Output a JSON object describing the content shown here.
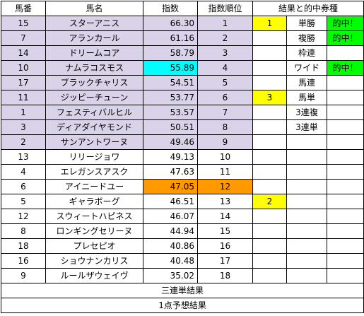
{
  "headers": {
    "umaban": "馬番",
    "bamei": "馬名",
    "shisu": "指数",
    "rank": "指数順位",
    "result": "結果と的中券種"
  },
  "colors": {
    "highlight_top9": "#d9d2e9",
    "cyan": "#00ffff",
    "orange": "#ff9900",
    "yellow": "#ffff00",
    "green": "#00ff00"
  },
  "rows": [
    {
      "num": "15",
      "name": "スターアニス",
      "score": "66.30",
      "rank": "1",
      "result": "1",
      "ticket": "単勝",
      "hit": "的中！"
    },
    {
      "num": "7",
      "name": "アランカール",
      "score": "61.16",
      "rank": "2",
      "result": "",
      "ticket": "複勝",
      "hit": "的中！"
    },
    {
      "num": "14",
      "name": "ドリームコア",
      "score": "58.79",
      "rank": "3",
      "result": "",
      "ticket": "枠連",
      "hit": ""
    },
    {
      "num": "10",
      "name": "ナムラコスモス",
      "score": "55.89",
      "rank": "4",
      "result": "",
      "ticket": "ワイド",
      "hit": "的中！"
    },
    {
      "num": "17",
      "name": "ブラックチャリス",
      "score": "54.51",
      "rank": "5",
      "result": "",
      "ticket": "馬連",
      "hit": ""
    },
    {
      "num": "11",
      "name": "ジッピーチューン",
      "score": "53.77",
      "rank": "6",
      "result": "3",
      "ticket": "馬単",
      "hit": ""
    },
    {
      "num": "1",
      "name": "フェスティバルヒル",
      "score": "53.57",
      "rank": "7",
      "result": "",
      "ticket": "3連複",
      "hit": ""
    },
    {
      "num": "3",
      "name": "ディアダイヤモンド",
      "score": "50.51",
      "rank": "8",
      "result": "",
      "ticket": "3連単",
      "hit": ""
    },
    {
      "num": "2",
      "name": "サンアントワーヌ",
      "score": "49.46",
      "rank": "9",
      "result": "",
      "ticket": "",
      "hit": ""
    },
    {
      "num": "13",
      "name": "リリージョワ",
      "score": "49.13",
      "rank": "10",
      "result": "",
      "ticket": "",
      "hit": ""
    },
    {
      "num": "4",
      "name": "エレガンスアスク",
      "score": "47.63",
      "rank": "11",
      "result": "",
      "ticket": "",
      "hit": ""
    },
    {
      "num": "6",
      "name": "アイニードユー",
      "score": "47.05",
      "rank": "12",
      "result": "",
      "ticket": "",
      "hit": ""
    },
    {
      "num": "5",
      "name": "ギャラボーグ",
      "score": "46.51",
      "rank": "13",
      "result": "2",
      "ticket": "",
      "hit": ""
    },
    {
      "num": "12",
      "name": "スウィートハピネス",
      "score": "46.07",
      "rank": "14",
      "result": "",
      "ticket": "",
      "hit": ""
    },
    {
      "num": "8",
      "name": "ロンギングセリーヌ",
      "score": "44.94",
      "rank": "15",
      "result": "",
      "ticket": "",
      "hit": ""
    },
    {
      "num": "18",
      "name": "プレセピオ",
      "score": "40.86",
      "rank": "16",
      "result": "",
      "ticket": "",
      "hit": ""
    },
    {
      "num": "16",
      "name": "ショウナンカリス",
      "score": "40.48",
      "rank": "17",
      "result": "",
      "ticket": "",
      "hit": ""
    },
    {
      "num": "9",
      "name": "ルールザウェイヴ",
      "score": "35.02",
      "rank": "18",
      "result": "",
      "ticket": "",
      "hit": ""
    }
  ],
  "footer": {
    "sanrentan": "三連単結果",
    "yoso": "1点予想結果"
  }
}
